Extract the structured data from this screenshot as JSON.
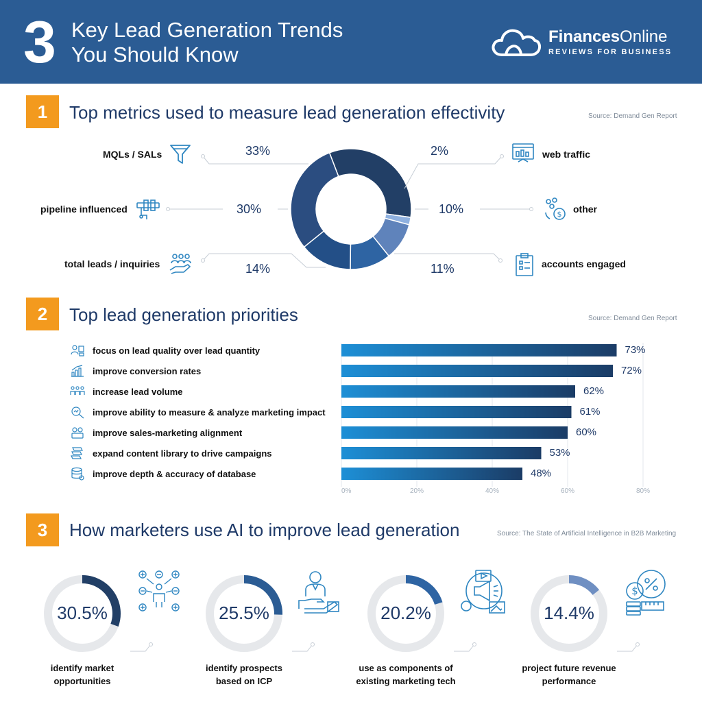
{
  "header": {
    "number": "3",
    "title_line1": "Key Lead Generation Trends",
    "title_line2": "You Should Know",
    "brand_bold": "Finances",
    "brand_rest": "Online",
    "brand_tagline": "REVIEWS FOR BUSINESS"
  },
  "section1": {
    "number": "1",
    "title": "Top metrics used to measure lead generation effectivity",
    "source": "Source: Demand Gen Report"
  },
  "section2": {
    "number": "2",
    "title": "Top lead generation priorities",
    "source": "Source: Demand Gen Report"
  },
  "section3": {
    "number": "3",
    "title": "How marketers use AI to improve lead generation",
    "source": "Source: The State of Artificial Intelligence in B2B Marketing"
  },
  "chart_data": [
    {
      "type": "pie",
      "title": "Top metrics used to measure lead generation effectivity",
      "categories": [
        "MQLs / SALs",
        "web traffic",
        "other",
        "accounts engaged",
        "total leads / inquiries",
        "pipeline influenced"
      ],
      "values": [
        33,
        2,
        10,
        11,
        14,
        30
      ],
      "labels": [
        "33%",
        "2%",
        "10%",
        "11%",
        "14%",
        "30%"
      ],
      "colors": [
        "#223f66",
        "#8fb1e0",
        "#5f83bb",
        "#2e64a3",
        "#234f87",
        "#2b4d80"
      ]
    },
    {
      "type": "bar",
      "title": "Top lead generation priorities",
      "categories": [
        "focus on lead quality over lead quantity",
        "improve conversion rates",
        "increase lead volume",
        "improve ability to measure & analyze marketing impact",
        "improve sales-marketing alignment",
        "expand content library to drive campaigns",
        "improve depth & accuracy of database"
      ],
      "values": [
        73,
        72,
        62,
        61,
        60,
        53,
        48
      ],
      "labels": [
        "73%",
        "72%",
        "62%",
        "61%",
        "60%",
        "53%",
        "48%"
      ],
      "xlim": [
        0,
        80
      ],
      "ticks": [
        "0%",
        "20%",
        "40%",
        "60%",
        "80%"
      ],
      "grid": true
    },
    {
      "type": "pie",
      "title": "How marketers use AI to improve lead generation",
      "categories": [
        "identify market opportunities",
        "identify prospects based on ICP",
        "use as components of existing marketing tech",
        "project future revenue performance"
      ],
      "values": [
        30.5,
        25.5,
        20.2,
        14.4
      ],
      "labels": [
        "30.5%",
        "25.5%",
        "20.2%",
        "14.4%"
      ],
      "label_lines": [
        [
          "identify market",
          "opportunities"
        ],
        [
          "identify prospects",
          "based on ICP"
        ],
        [
          "use as components of",
          "existing marketing tech"
        ],
        [
          "project future revenue",
          "performance"
        ]
      ],
      "colors": [
        "#223f66",
        "#2b5c94",
        "#2e64a3",
        "#6f8fc2"
      ]
    }
  ]
}
